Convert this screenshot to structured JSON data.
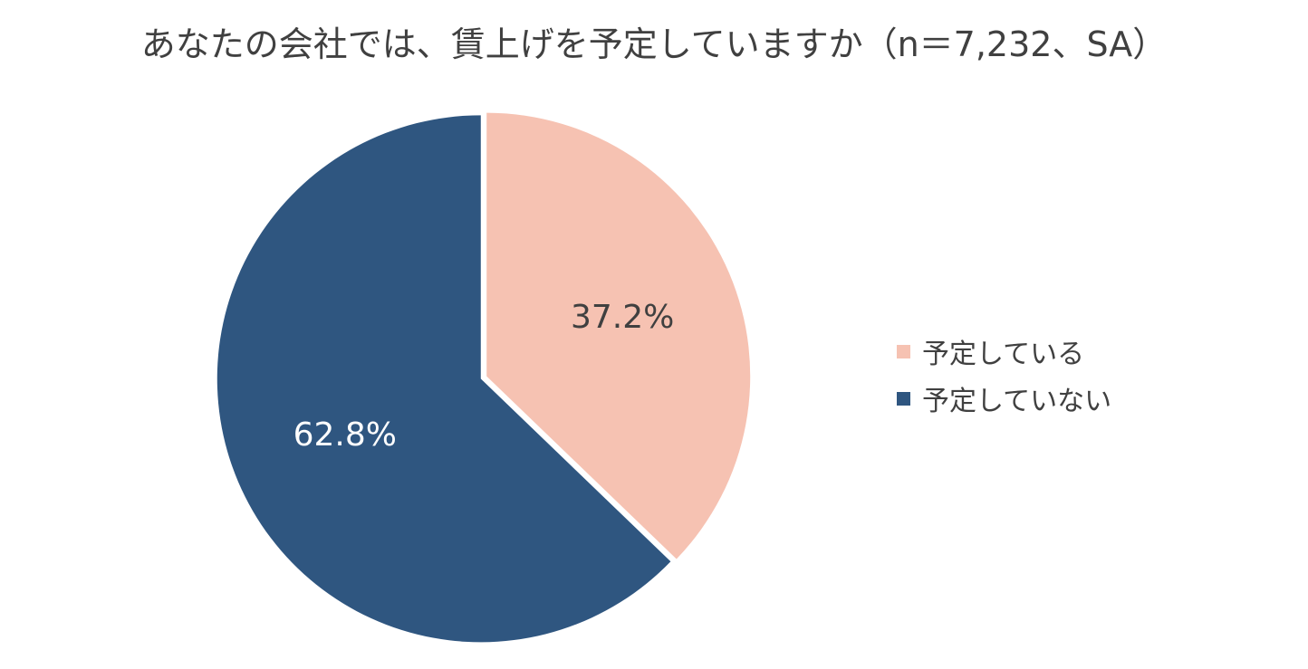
{
  "chart_data": {
    "type": "pie",
    "title": "あなたの会社では、賃上げを予定していますか（n＝7,232、SA）",
    "slices": [
      {
        "label": "予定している",
        "value": 37.2,
        "value_label": "37.2%",
        "color": "#F6C2B2",
        "label_color": "#404040"
      },
      {
        "label": "予定していない",
        "value": 62.8,
        "value_label": "62.8%",
        "color": "#2F5680",
        "label_color": "#FFFFFF"
      }
    ],
    "start_angle": "12 o'clock",
    "direction": "clockwise",
    "legend_position": "right"
  }
}
